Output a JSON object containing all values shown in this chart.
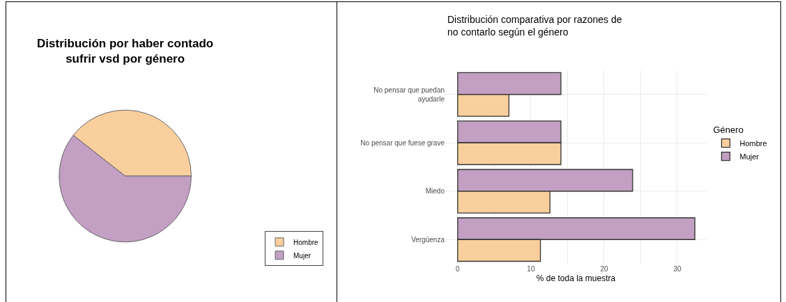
{
  "chart_data": [
    {
      "type": "pie",
      "title": "Distribución por haber contado sufrir vsd por género",
      "categories": [
        "Hombre",
        "Mujer"
      ],
      "values": [
        39.4,
        60.6
      ],
      "colors": [
        "#f9cf9d",
        "#c29fc3"
      ],
      "legend": "bottom right"
    },
    {
      "type": "bar",
      "orientation": "horizontal",
      "title": "Distribución comparativa por razones de no contarlo según el género",
      "xlabel": "% de toda la muestra",
      "legend_title": "Género",
      "legend": "right",
      "grid": true,
      "categories": [
        "No pensar que puedan ayudarle",
        "No pensar que fuese grave",
        "Miedo",
        "Vergüenza"
      ],
      "series": [
        {
          "name": "Hombre",
          "color": "#f9cf9d",
          "values": [
            7.0,
            14.1,
            12.6,
            11.3
          ]
        },
        {
          "name": "Mujer",
          "color": "#c29fc3",
          "values": [
            14.1,
            14.1,
            23.9,
            32.4
          ]
        }
      ],
      "xlim": [
        -1.7,
        34
      ],
      "xticks": [
        0,
        {
          "value": 5,
          "label": null
        },
        10,
        {
          "value": 15,
          "label": null
        },
        20,
        {
          "value": 25,
          "label": null
        },
        30
      ]
    }
  ]
}
